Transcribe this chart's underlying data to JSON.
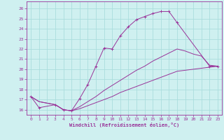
{
  "xlabel": "Windchill (Refroidissement éolien,°C)",
  "background_color": "#cff0f0",
  "grid_color": "#aadddd",
  "line_color": "#993399",
  "xlim": [
    -0.5,
    23.5
  ],
  "ylim": [
    15.5,
    26.7
  ],
  "xticks": [
    0,
    1,
    2,
    3,
    4,
    5,
    6,
    7,
    8,
    9,
    10,
    11,
    12,
    13,
    14,
    15,
    16,
    17,
    18,
    19,
    20,
    21,
    22,
    23
  ],
  "yticks": [
    16,
    17,
    18,
    19,
    20,
    21,
    22,
    23,
    24,
    25,
    26
  ],
  "line1_x": [
    0,
    1,
    3,
    4,
    5,
    6,
    7,
    8,
    9,
    10,
    11,
    12,
    13,
    14,
    15,
    16,
    17,
    18,
    22,
    23
  ],
  "line1_y": [
    17.3,
    16.2,
    16.5,
    16.0,
    15.9,
    17.1,
    18.5,
    20.3,
    22.1,
    22.0,
    23.3,
    24.2,
    24.9,
    25.2,
    25.5,
    25.7,
    25.7,
    24.6,
    20.3,
    20.3
  ],
  "line2_x": [
    0,
    1,
    3,
    4,
    5,
    6,
    7,
    8,
    9,
    10,
    11,
    12,
    13,
    14,
    15,
    16,
    17,
    18,
    19,
    20,
    21,
    22,
    23
  ],
  "line2_y": [
    17.3,
    16.8,
    16.5,
    16.0,
    15.9,
    16.3,
    16.8,
    17.3,
    17.9,
    18.4,
    18.9,
    19.4,
    19.9,
    20.3,
    20.8,
    21.2,
    21.6,
    22.0,
    21.8,
    21.5,
    21.3,
    20.4,
    20.3
  ],
  "line3_x": [
    0,
    1,
    3,
    4,
    5,
    6,
    7,
    8,
    9,
    10,
    11,
    12,
    13,
    14,
    15,
    16,
    17,
    18,
    19,
    20,
    21,
    22,
    23
  ],
  "line3_y": [
    17.3,
    16.8,
    16.5,
    16.0,
    15.9,
    16.1,
    16.4,
    16.7,
    17.0,
    17.3,
    17.7,
    18.0,
    18.3,
    18.6,
    18.9,
    19.2,
    19.5,
    19.8,
    19.9,
    20.0,
    20.1,
    20.2,
    20.3
  ]
}
